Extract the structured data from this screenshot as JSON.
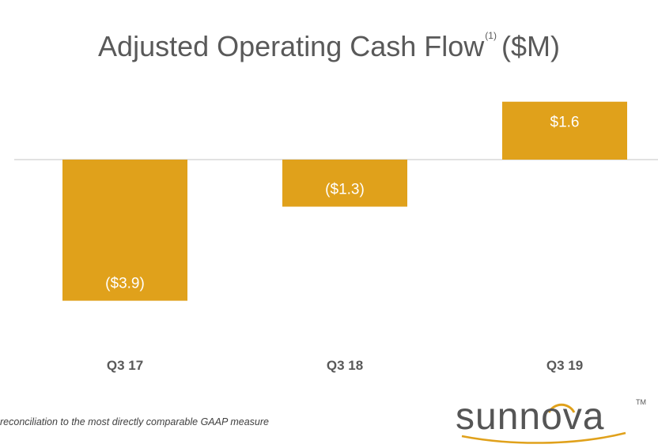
{
  "title": {
    "main": "Adjusted Operating Cash Flow",
    "footnote_ref": "(1)",
    "unit": "($M)"
  },
  "chart_data": {
    "type": "bar",
    "categories": [
      "Q3 17",
      "Q3 18",
      "Q3 19"
    ],
    "values": [
      -3.9,
      -1.3,
      1.6
    ],
    "data_labels": [
      "($3.9)",
      "($1.3)",
      "$1.6"
    ],
    "ylim": [
      -5,
      1.6
    ],
    "grid": false,
    "bar_color": "#E0A11B",
    "axis_color": "#D9D9D9"
  },
  "footnote": "reconciliation to the most directly comparable GAAP measure",
  "logo": {
    "text": "sunnova",
    "trademark": "TM",
    "accent_color": "#E0A11B"
  }
}
